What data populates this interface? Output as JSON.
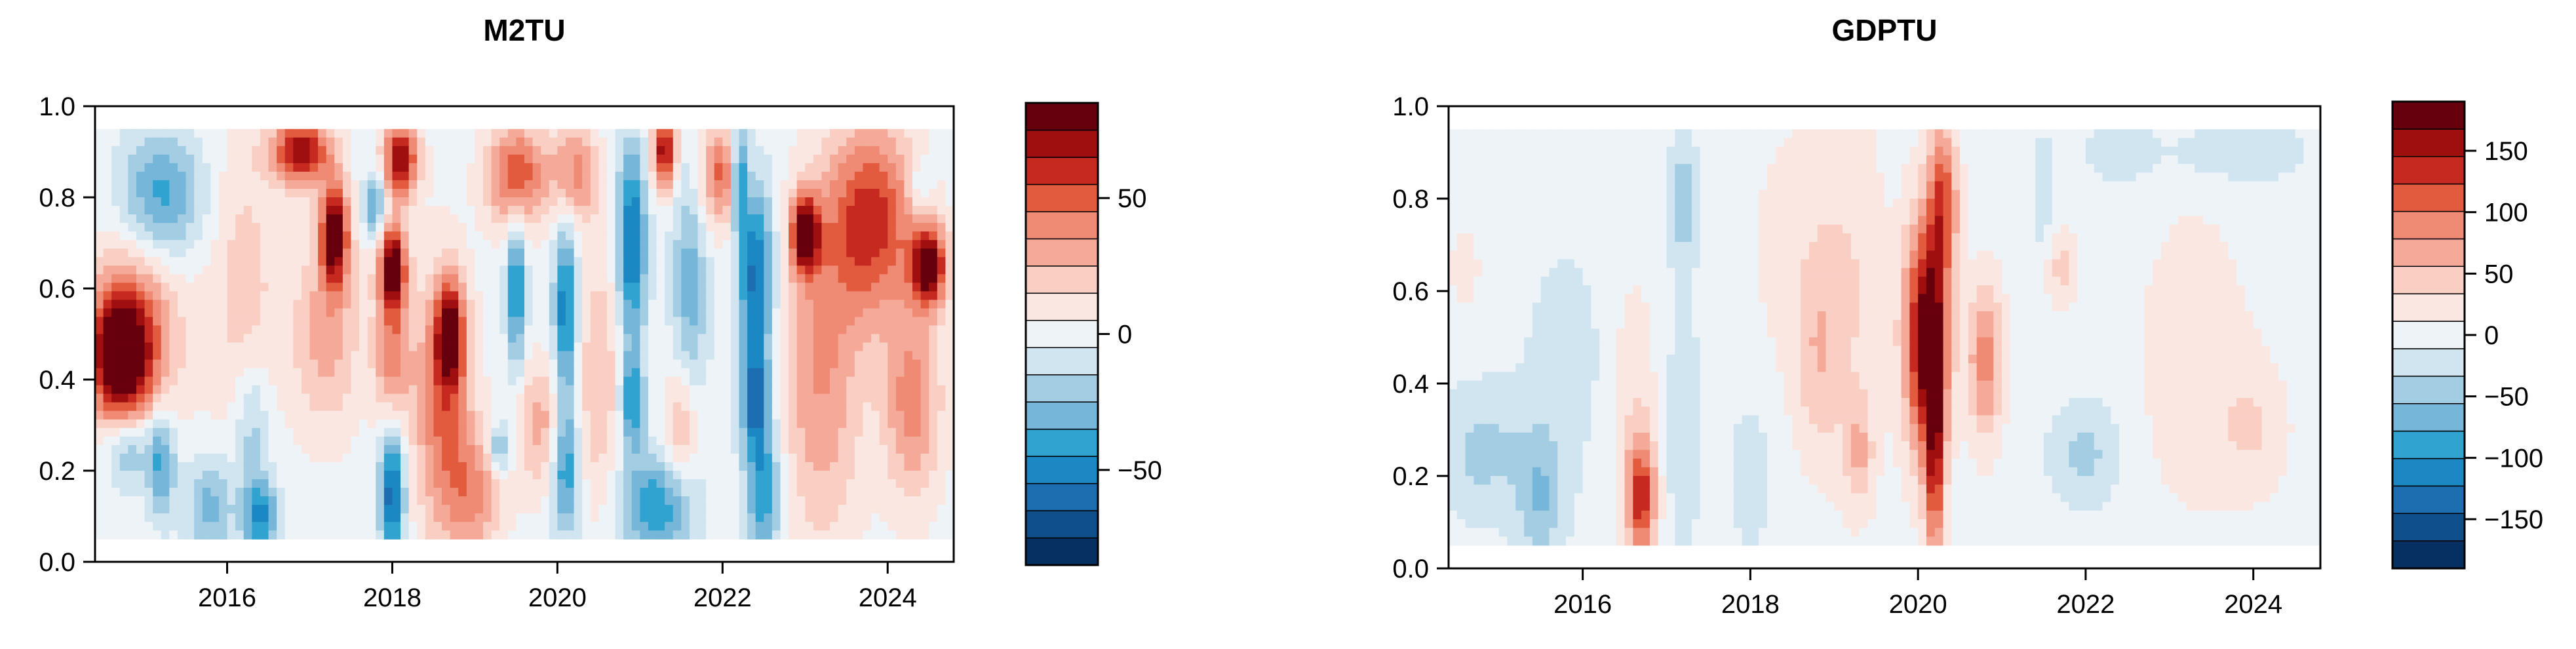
{
  "chart_data": [
    {
      "type": "heatmap",
      "title": "M2TU",
      "xlabel": "",
      "ylabel": "",
      "xlim": [
        2014.4,
        2024.8
      ],
      "ylim": [
        0.0,
        1.0
      ],
      "x_ticks": [
        2016,
        2018,
        2020,
        2022,
        2024
      ],
      "x_tick_labels": [
        "2016",
        "2018",
        "2020",
        "2022",
        "2024"
      ],
      "y_ticks": [
        0.0,
        0.2,
        0.4,
        0.6,
        0.8,
        1.0
      ],
      "y_tick_labels": [
        "0.0",
        "0.2",
        "0.4",
        "0.6",
        "0.8",
        "1.0"
      ],
      "data_y_range": [
        0.05,
        0.95
      ],
      "colorbar": {
        "range": [
          -85,
          85
        ],
        "ticks": [
          -50,
          0,
          50
        ],
        "tick_labels": [
          "−50",
          "0",
          "50"
        ],
        "levels": 17
      },
      "features": [
        {
          "x": 2014.7,
          "y": 0.45,
          "value": 80,
          "sx": 0.25,
          "sy": 0.1
        },
        {
          "x": 2014.9,
          "y": 0.5,
          "value": 40,
          "sx": 0.4,
          "sy": 0.15
        },
        {
          "x": 2015.2,
          "y": 0.8,
          "value": -40,
          "sx": 0.35,
          "sy": 0.1
        },
        {
          "x": 2014.8,
          "y": 0.25,
          "value": -35,
          "sx": 0.2,
          "sy": 0.06
        },
        {
          "x": 2015.2,
          "y": 0.22,
          "value": -40,
          "sx": 0.12,
          "sy": 0.08
        },
        {
          "x": 2015.8,
          "y": 0.12,
          "value": -30,
          "sx": 0.2,
          "sy": 0.08
        },
        {
          "x": 2016.4,
          "y": 0.1,
          "value": -50,
          "sx": 0.15,
          "sy": 0.06
        },
        {
          "x": 2016.2,
          "y": 0.6,
          "value": 20,
          "sx": 0.3,
          "sy": 0.25
        },
        {
          "x": 2016.3,
          "y": 0.3,
          "value": -25,
          "sx": 0.15,
          "sy": 0.1
        },
        {
          "x": 2016.9,
          "y": 0.9,
          "value": 75,
          "sx": 0.25,
          "sy": 0.05
        },
        {
          "x": 2017.3,
          "y": 0.72,
          "value": 85,
          "sx": 0.12,
          "sy": 0.08
        },
        {
          "x": 2017.2,
          "y": 0.5,
          "value": 30,
          "sx": 0.3,
          "sy": 0.15
        },
        {
          "x": 2017.8,
          "y": 0.78,
          "value": -40,
          "sx": 0.1,
          "sy": 0.05
        },
        {
          "x": 2018.1,
          "y": 0.88,
          "value": 75,
          "sx": 0.15,
          "sy": 0.06
        },
        {
          "x": 2018.0,
          "y": 0.65,
          "value": 85,
          "sx": 0.12,
          "sy": 0.07
        },
        {
          "x": 2018.0,
          "y": 0.45,
          "value": 40,
          "sx": 0.15,
          "sy": 0.1
        },
        {
          "x": 2018.0,
          "y": 0.15,
          "value": -65,
          "sx": 0.1,
          "sy": 0.1
        },
        {
          "x": 2018.6,
          "y": 0.35,
          "value": 45,
          "sx": 0.25,
          "sy": 0.2
        },
        {
          "x": 2018.7,
          "y": 0.5,
          "value": 70,
          "sx": 0.12,
          "sy": 0.08
        },
        {
          "x": 2019.0,
          "y": 0.15,
          "value": 35,
          "sx": 0.25,
          "sy": 0.1
        },
        {
          "x": 2019.3,
          "y": 0.25,
          "value": -35,
          "sx": 0.1,
          "sy": 0.04
        },
        {
          "x": 2019.5,
          "y": 0.85,
          "value": 55,
          "sx": 0.25,
          "sy": 0.08
        },
        {
          "x": 2019.5,
          "y": 0.6,
          "value": -50,
          "sx": 0.08,
          "sy": 0.12
        },
        {
          "x": 2019.8,
          "y": 0.3,
          "value": 30,
          "sx": 0.2,
          "sy": 0.1
        },
        {
          "x": 2020.2,
          "y": 0.85,
          "value": 40,
          "sx": 0.2,
          "sy": 0.08
        },
        {
          "x": 2020.1,
          "y": 0.55,
          "value": -55,
          "sx": 0.1,
          "sy": 0.15
        },
        {
          "x": 2020.1,
          "y": 0.2,
          "value": -45,
          "sx": 0.12,
          "sy": 0.1
        },
        {
          "x": 2020.5,
          "y": 0.4,
          "value": 25,
          "sx": 0.2,
          "sy": 0.2
        },
        {
          "x": 2020.9,
          "y": 0.7,
          "value": -60,
          "sx": 0.12,
          "sy": 0.15
        },
        {
          "x": 2020.9,
          "y": 0.35,
          "value": -45,
          "sx": 0.1,
          "sy": 0.08
        },
        {
          "x": 2021.2,
          "y": 0.12,
          "value": -45,
          "sx": 0.3,
          "sy": 0.08
        },
        {
          "x": 2021.3,
          "y": 0.9,
          "value": 75,
          "sx": 0.1,
          "sy": 0.06
        },
        {
          "x": 2021.6,
          "y": 0.6,
          "value": -30,
          "sx": 0.15,
          "sy": 0.2
        },
        {
          "x": 2021.5,
          "y": 0.3,
          "value": 30,
          "sx": 0.15,
          "sy": 0.1
        },
        {
          "x": 2022.0,
          "y": 0.85,
          "value": 50,
          "sx": 0.2,
          "sy": 0.08
        },
        {
          "x": 2022.4,
          "y": 0.62,
          "value": -60,
          "sx": 0.15,
          "sy": 0.15
        },
        {
          "x": 2022.4,
          "y": 0.35,
          "value": -55,
          "sx": 0.12,
          "sy": 0.08
        },
        {
          "x": 2022.5,
          "y": 0.15,
          "value": -45,
          "sx": 0.15,
          "sy": 0.1
        },
        {
          "x": 2022.2,
          "y": 0.85,
          "value": -60,
          "sx": 0.08,
          "sy": 0.08
        },
        {
          "x": 2023.0,
          "y": 0.72,
          "value": 80,
          "sx": 0.12,
          "sy": 0.06
        },
        {
          "x": 2023.2,
          "y": 0.4,
          "value": 35,
          "sx": 0.35,
          "sy": 0.25
        },
        {
          "x": 2023.8,
          "y": 0.75,
          "value": 60,
          "sx": 0.4,
          "sy": 0.15
        },
        {
          "x": 2024.5,
          "y": 0.65,
          "value": 82,
          "sx": 0.15,
          "sy": 0.06
        },
        {
          "x": 2024.3,
          "y": 0.35,
          "value": 40,
          "sx": 0.25,
          "sy": 0.15
        },
        {
          "x": 2024.4,
          "y": 0.82,
          "value": -20,
          "sx": 0.1,
          "sy": 0.05
        }
      ]
    },
    {
      "type": "heatmap",
      "title": "GDPTU",
      "xlabel": "",
      "ylabel": "",
      "xlim": [
        2014.4,
        2024.8
      ],
      "ylim": [
        0.0,
        1.0
      ],
      "x_ticks": [
        2016,
        2018,
        2020,
        2022,
        2024
      ],
      "x_tick_labels": [
        "2016",
        "2018",
        "2020",
        "2022",
        "2024"
      ],
      "y_ticks": [
        0.0,
        0.2,
        0.4,
        0.6,
        0.8,
        1.0
      ],
      "y_tick_labels": [
        "0.0",
        "0.2",
        "0.4",
        "0.6",
        "0.8",
        "1.0"
      ],
      "data_y_range": [
        0.05,
        0.95
      ],
      "colorbar": {
        "range": [
          -190,
          190
        ],
        "ticks": [
          -150,
          -100,
          -50,
          0,
          50,
          100,
          150
        ],
        "tick_labels": [
          "−150",
          "−100",
          "−50",
          "0",
          "50",
          "100",
          "150"
        ],
        "levels": 17
      },
      "features": [
        {
          "x": 2020.1,
          "y": 0.5,
          "value": 190,
          "sx": 0.18,
          "sy": 0.18
        },
        {
          "x": 2020.2,
          "y": 0.25,
          "value": 120,
          "sx": 0.08,
          "sy": 0.2
        },
        {
          "x": 2020.3,
          "y": 0.8,
          "value": 110,
          "sx": 0.12,
          "sy": 0.12
        },
        {
          "x": 2020.8,
          "y": 0.45,
          "value": 90,
          "sx": 0.15,
          "sy": 0.12
        },
        {
          "x": 2016.7,
          "y": 0.15,
          "value": 130,
          "sx": 0.12,
          "sy": 0.09
        },
        {
          "x": 2016.6,
          "y": 0.35,
          "value": 30,
          "sx": 0.2,
          "sy": 0.2
        },
        {
          "x": 2014.8,
          "y": 0.25,
          "value": -40,
          "sx": 0.4,
          "sy": 0.1
        },
        {
          "x": 2015.5,
          "y": 0.15,
          "value": -50,
          "sx": 0.2,
          "sy": 0.1
        },
        {
          "x": 2017.2,
          "y": 0.8,
          "value": -50,
          "sx": 0.12,
          "sy": 0.1
        },
        {
          "x": 2017.2,
          "y": 0.3,
          "value": -30,
          "sx": 0.15,
          "sy": 0.2
        },
        {
          "x": 2018.8,
          "y": 0.45,
          "value": 40,
          "sx": 0.2,
          "sy": 0.15
        },
        {
          "x": 2019.3,
          "y": 0.25,
          "value": 50,
          "sx": 0.12,
          "sy": 0.08
        },
        {
          "x": 2019.2,
          "y": 0.6,
          "value": 30,
          "sx": 0.3,
          "sy": 0.3
        },
        {
          "x": 2018.0,
          "y": 0.2,
          "value": -35,
          "sx": 0.15,
          "sy": 0.1
        },
        {
          "x": 2018.5,
          "y": 0.7,
          "value": 20,
          "sx": 0.4,
          "sy": 0.2
        },
        {
          "x": 2021.7,
          "y": 0.65,
          "value": 40,
          "sx": 0.15,
          "sy": 0.06
        },
        {
          "x": 2021.5,
          "y": 0.8,
          "value": -30,
          "sx": 0.08,
          "sy": 0.1
        },
        {
          "x": 2022.0,
          "y": 0.25,
          "value": -40,
          "sx": 0.3,
          "sy": 0.08
        },
        {
          "x": 2023.3,
          "y": 0.45,
          "value": 25,
          "sx": 0.5,
          "sy": 0.25
        },
        {
          "x": 2024.0,
          "y": 0.3,
          "value": 30,
          "sx": 0.3,
          "sy": 0.1
        },
        {
          "x": 2023.8,
          "y": 0.9,
          "value": -30,
          "sx": 0.6,
          "sy": 0.05
        },
        {
          "x": 2022.4,
          "y": 0.9,
          "value": -25,
          "sx": 0.3,
          "sy": 0.05
        },
        {
          "x": 2015.8,
          "y": 0.45,
          "value": -20,
          "sx": 0.4,
          "sy": 0.2
        },
        {
          "x": 2014.6,
          "y": 0.65,
          "value": 20,
          "sx": 0.15,
          "sy": 0.08
        }
      ]
    }
  ]
}
